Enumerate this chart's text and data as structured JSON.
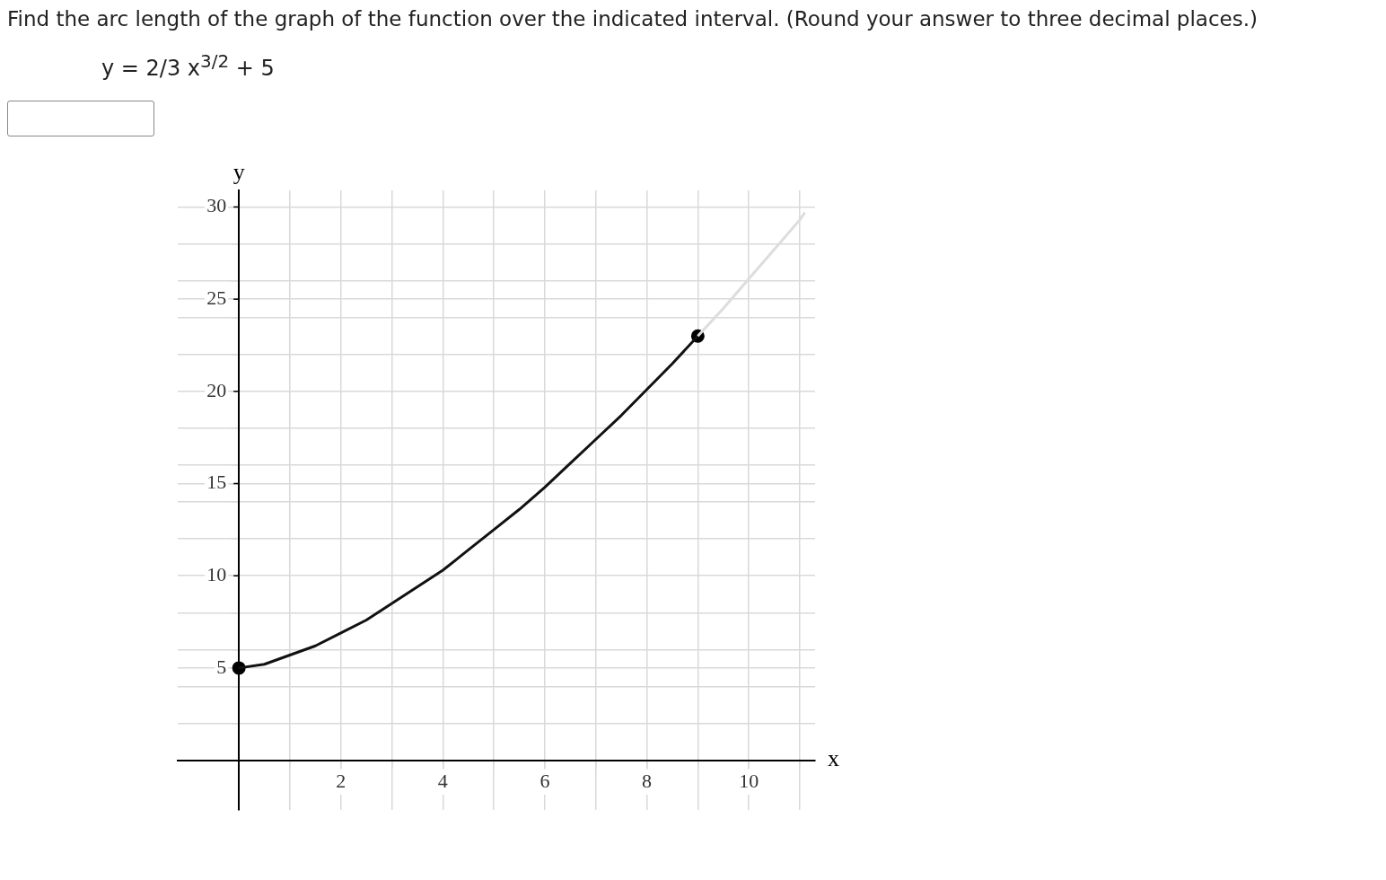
{
  "chart_data": {
    "type": "line",
    "title": "Find the arc length of the graph of the function over the indicated interval. (Round your answer to three decimal places.)",
    "subtitle": "y = 2/3 x$^{3/2}$ + 5",
    "xlabel": "x",
    "ylabel": "y",
    "xlim": [
      -1.2,
      11.3
    ],
    "ylim": [
      -2.7,
      30.9
    ],
    "xticks": [
      {
        "value": 1,
        "label": null
      },
      2,
      {
        "value": 3,
        "label": null
      },
      4,
      {
        "value": 5,
        "label": null
      },
      6,
      {
        "value": 7,
        "label": null
      },
      8,
      {
        "value": 9,
        "label": null
      },
      10,
      {
        "value": 11,
        "label": null
      }
    ],
    "yticks": [
      {
        "value": 2,
        "label": null
      },
      {
        "value": 4,
        "label": null
      },
      5,
      {
        "value": 6,
        "label": null
      },
      {
        "value": 8,
        "label": null
      },
      10,
      {
        "value": 12,
        "label": null
      },
      {
        "value": 14,
        "label": null
      },
      15,
      {
        "value": 16,
        "label": null
      },
      {
        "value": 18,
        "label": null
      },
      20,
      {
        "value": 22,
        "label": null
      },
      {
        "value": 24,
        "label": null
      },
      25,
      {
        "value": 26,
        "label": null
      },
      {
        "value": 28,
        "label": null
      },
      30
    ],
    "grid": true,
    "legend": false,
    "series": [
      {
        "type": "line",
        "color": "#dddddd",
        "marker": "none",
        "x": [
          9,
          9.5,
          10,
          10.5,
          11,
          11.1
        ],
        "values": [
          23,
          24.5,
          26.1,
          27.7,
          29.3,
          29.7
        ]
      },
      {
        "color": "#111111",
        "marker": "none",
        "x": [
          0,
          0.5,
          1,
          1.5,
          2,
          2.5,
          3,
          3.5,
          4,
          4.5,
          5,
          5.5,
          6,
          6.5,
          7,
          7.5,
          8,
          8.5,
          9
        ],
        "values": [
          5,
          5.2,
          5.7,
          6.2,
          6.9,
          7.6,
          8.5,
          9.4,
          10.3,
          11.4,
          12.5,
          13.6,
          14.8,
          16.1,
          17.4,
          18.7,
          20.1,
          21.5,
          23
        ]
      },
      {
        "type": "scatter",
        "color": "#000000",
        "marker": "circle",
        "x": [
          0,
          9
        ],
        "values": [
          5,
          23
        ]
      }
    ]
  }
}
